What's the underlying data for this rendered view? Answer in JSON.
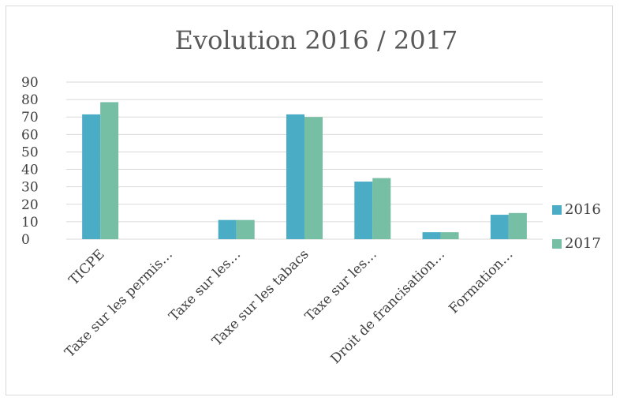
{
  "chart_data": {
    "type": "bar",
    "title": "Evolution 2016 / 2017",
    "xlabel": "",
    "ylabel": "",
    "ylim": [
      0,
      90
    ],
    "yticks": [
      0,
      10,
      20,
      30,
      40,
      50,
      60,
      70,
      80,
      90
    ],
    "grid": true,
    "legend_position": "right",
    "categories": [
      "TICPE",
      "Taxe sur les permis…",
      "Taxe sur les…",
      "Taxe sur les tabacs",
      "Taxe sur les…",
      "Droit de francisation…",
      "Formation…"
    ],
    "series": [
      {
        "name": "2016",
        "color": "#4bacc6",
        "values": [
          71.5,
          0,
          11,
          71.5,
          33,
          4,
          14
        ]
      },
      {
        "name": "2017",
        "color": "#76bfa4",
        "values": [
          78.5,
          0,
          11,
          70,
          35,
          4,
          15
        ]
      }
    ]
  }
}
